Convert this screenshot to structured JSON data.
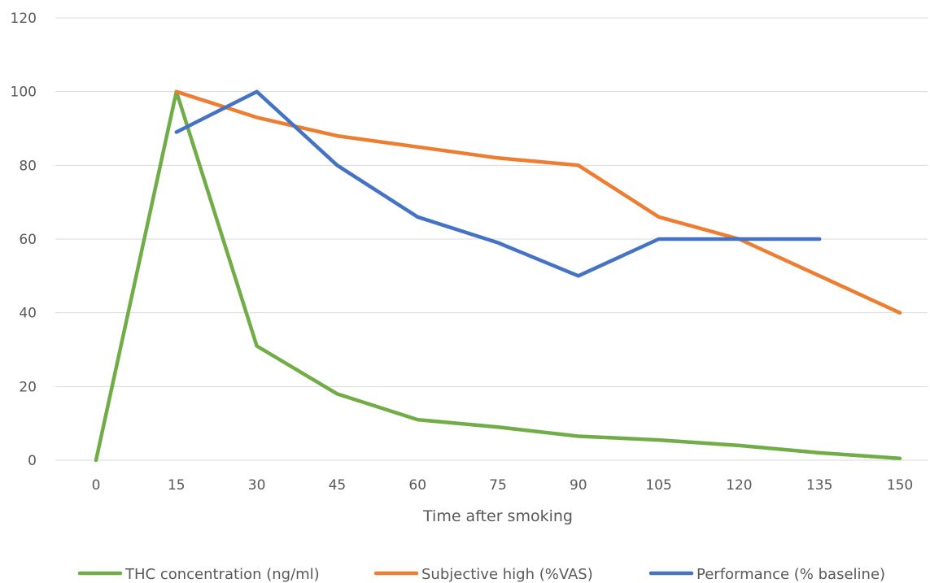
{
  "chart_data": {
    "type": "line",
    "title": "",
    "xlabel": "Time after smoking",
    "ylabel": "",
    "x": [
      0,
      15,
      30,
      45,
      60,
      75,
      90,
      105,
      120,
      135,
      150
    ],
    "x_tick_labels": [
      "0",
      "15",
      "30",
      "45",
      "60",
      "75",
      "90",
      "105",
      "120",
      "135",
      "150"
    ],
    "ylim": [
      0,
      120
    ],
    "y_tick_labels": [
      "0",
      "20",
      "40",
      "60",
      "80",
      "100",
      "120"
    ],
    "grid": true,
    "legend_position": "bottom",
    "series": [
      {
        "name": "THC concentration (ng/ml)",
        "color": "#70ad47",
        "values": [
          0,
          100,
          31,
          18,
          11,
          9,
          6.5,
          5.5,
          4,
          2,
          0.5
        ]
      },
      {
        "name": "Subjective high (%VAS)",
        "color": "#ed7d31",
        "values": [
          null,
          100,
          93,
          88,
          85,
          82,
          80,
          66,
          60,
          50,
          40
        ]
      },
      {
        "name": "Performance (% baseline)",
        "color": "#4472c4",
        "values": [
          null,
          89,
          100,
          80,
          66,
          59,
          50,
          60,
          60,
          60,
          null
        ]
      }
    ]
  }
}
